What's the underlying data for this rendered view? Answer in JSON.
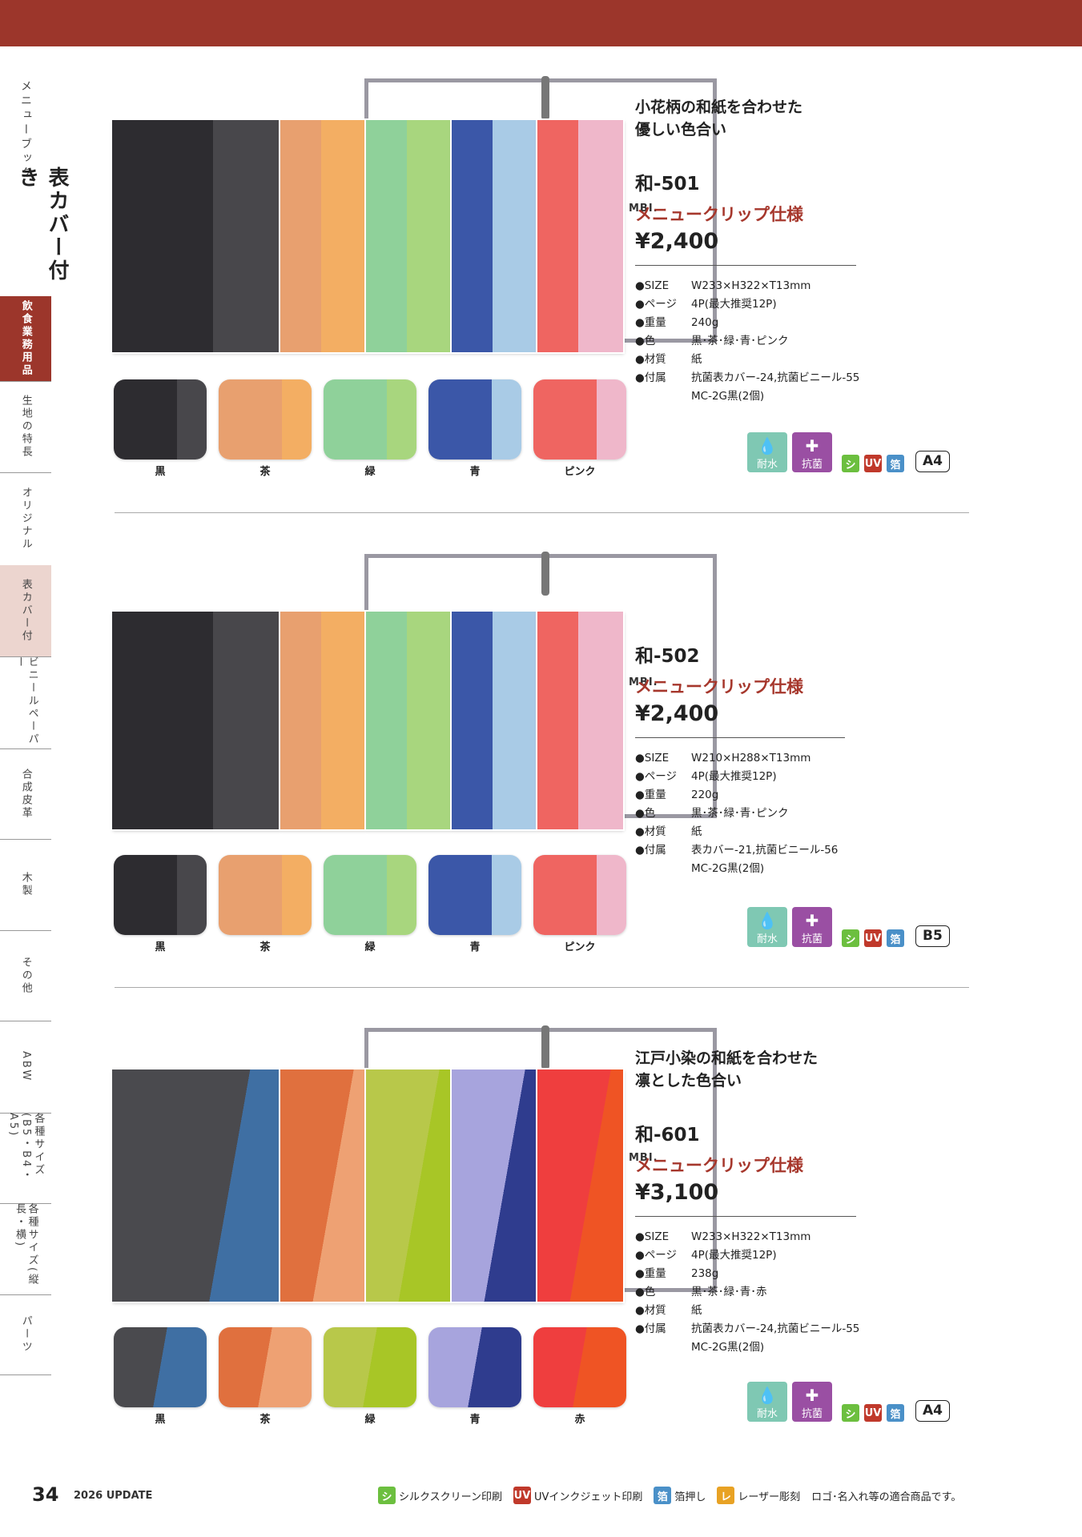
{
  "sidebar": {
    "section_small": "メニューブック",
    "section_big": "表カバー付き",
    "tabs": [
      {
        "label": "飲食業務用品",
        "state": "red"
      },
      {
        "label": "生地の特長",
        "state": "none"
      },
      {
        "label": "オリジナル",
        "state": "none"
      },
      {
        "label": "表カバー付",
        "state": "pink"
      },
      {
        "label": "ビニールペーパー",
        "state": "none"
      },
      {
        "label": "合成皮革",
        "state": "none"
      },
      {
        "label": "木製",
        "state": "none"
      },
      {
        "label": "その他",
        "state": "none"
      },
      {
        "label": "ABW",
        "state": "none"
      },
      {
        "label": "各種サイズ(B5・B4・A5)",
        "state": "none"
      },
      {
        "label": "各種サイズ(縦長・横)",
        "state": "none"
      },
      {
        "label": "パーツ",
        "state": "none"
      }
    ]
  },
  "binder_logo": "MBI.",
  "products": [
    {
      "tagline1": "小花柄の和紙を合わせた",
      "tagline2": "優しい色合い",
      "model": "和-501",
      "spec_type": "メニュークリップ仕様",
      "price": "¥2,400",
      "specs": [
        {
          "k": "●SIZE",
          "v": "W233×H322×T13mm"
        },
        {
          "k": "●ページ",
          "v": "4P(最大推奨12P)"
        },
        {
          "k": "●重量",
          "v": "240g"
        },
        {
          "k": "●色",
          "v": "黒･茶･緑･青･ピンク"
        },
        {
          "k": "●材質",
          "v": "紙"
        },
        {
          "k": "●付属",
          "v": "抗菌表カバー-24,抗菌ビニール-55"
        },
        {
          "k": "",
          "v": "MC-2G黒(2個)"
        }
      ],
      "size_badge": "A4",
      "colors": [
        {
          "name": "黒",
          "a": "#2d2c30",
          "b": "#48474b"
        },
        {
          "name": "茶",
          "a": "#e8a06f",
          "b": "#f3ae63"
        },
        {
          "name": "緑",
          "a": "#8fd19a",
          "b": "#a8d67e"
        },
        {
          "name": "青",
          "a": "#3b57a8",
          "b": "#a9cbe6"
        },
        {
          "name": "ピンク",
          "a": "#ef6561",
          "b": "#efb7ca"
        }
      ]
    },
    {
      "tagline1": "",
      "tagline2": "",
      "model": "和-502",
      "spec_type": "メニュークリップ仕様",
      "price": "¥2,400",
      "specs": [
        {
          "k": "●SIZE",
          "v": "W210×H288×T13mm"
        },
        {
          "k": "●ページ",
          "v": "4P(最大推奨12P)"
        },
        {
          "k": "●重量",
          "v": "220g"
        },
        {
          "k": "●色",
          "v": "黒･茶･緑･青･ピンク"
        },
        {
          "k": "●材質",
          "v": "紙"
        },
        {
          "k": "●付属",
          "v": "表カバー-21,抗菌ビニール-56"
        },
        {
          "k": "",
          "v": "MC-2G黒(2個)"
        }
      ],
      "size_badge": "B5",
      "colors": [
        {
          "name": "黒",
          "a": "#2d2c30",
          "b": "#48474b"
        },
        {
          "name": "茶",
          "a": "#e8a06f",
          "b": "#f3ae63"
        },
        {
          "name": "緑",
          "a": "#8fd19a",
          "b": "#a8d67e"
        },
        {
          "name": "青",
          "a": "#3b57a8",
          "b": "#a9cbe6"
        },
        {
          "name": "ピンク",
          "a": "#ef6561",
          "b": "#efb7ca"
        }
      ]
    },
    {
      "tagline1": "江戸小染の和紙を合わせた",
      "tagline2": "凛とした色合い",
      "model": "和-601",
      "spec_type": "メニュークリップ仕様",
      "price": "¥3,100",
      "specs": [
        {
          "k": "●SIZE",
          "v": "W233×H322×T13mm"
        },
        {
          "k": "●ページ",
          "v": "4P(最大推奨12P)"
        },
        {
          "k": "●重量",
          "v": "238g"
        },
        {
          "k": "●色",
          "v": "黒･茶･緑･青･赤"
        },
        {
          "k": "●材質",
          "v": "紙"
        },
        {
          "k": "●付属",
          "v": "抗菌表カバー-24,抗菌ビニール-55"
        },
        {
          "k": "",
          "v": "MC-2G黒(2個)"
        }
      ],
      "size_badge": "A4",
      "colors": [
        {
          "name": "黒",
          "a": "#4a4a4e",
          "b": "#3f6fa3"
        },
        {
          "name": "茶",
          "a": "#e0703e",
          "b": "#eea173"
        },
        {
          "name": "緑",
          "a": "#b8c84a",
          "b": "#a8c626"
        },
        {
          "name": "青",
          "a": "#a7a4dd",
          "b": "#2f3c8e"
        },
        {
          "name": "赤",
          "a": "#ef3e3e",
          "b": "#ef5424"
        }
      ]
    }
  ],
  "badges": {
    "water": "耐水",
    "antibac": "抗菌",
    "silk": "シ",
    "uv": "UV",
    "foil": "箔",
    "laser": "レ",
    "water_color": "#7fc8b3",
    "antibac_color": "#9a4fa3",
    "silk_color": "#6cbf3f",
    "uv_color": "#c0392b",
    "foil_color": "#4a90c8",
    "laser_color": "#e8a224"
  },
  "footer": {
    "page_number": "34",
    "update": "2026 UPDATE",
    "legend_silk": "シルクスクリーン印刷",
    "legend_uv": "UVインクジェット印刷",
    "legend_foil": "箔押し",
    "legend_laser": "レーザー彫刻",
    "legend_note": "ロゴ･名入れ等の適合商品です。"
  }
}
